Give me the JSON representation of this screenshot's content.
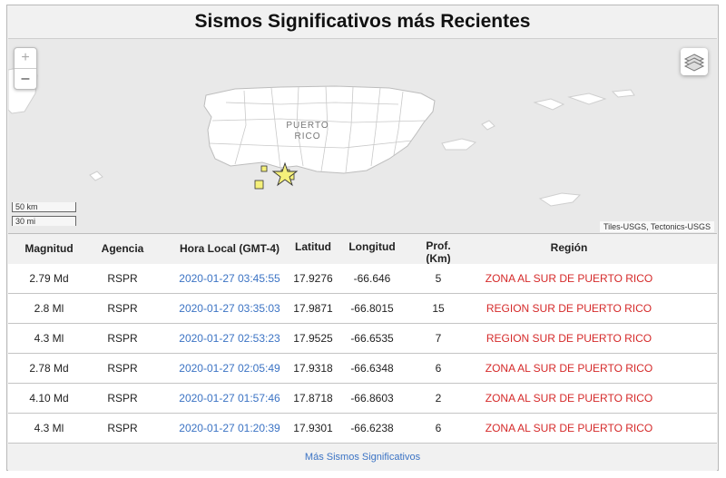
{
  "title": "Sismos Significativos más Recientes",
  "map": {
    "zoom_in": "+",
    "zoom_out": "–",
    "region_label_line1": "PUERTO",
    "region_label_line2": "RICO",
    "scale_km": "50 km",
    "scale_mi": "30 mi",
    "attribution": "Tiles-USGS, Tectonics-USGS"
  },
  "table": {
    "headers": {
      "magnitude": "Magnitud",
      "agency": "Agencia",
      "time": "Hora Local (GMT-4)",
      "latitude": "Latitud",
      "longitude": "Longitud",
      "depth_line1": "Prof.",
      "depth_line2": "(Km)",
      "region": "Región"
    },
    "rows": [
      {
        "magnitude": "2.79 Md",
        "agency": "RSPR",
        "time": "2020-01-27 03:45:55",
        "latitude": "17.9276",
        "longitude": "-66.646",
        "depth": "5",
        "region": "ZONA AL SUR DE PUERTO RICO"
      },
      {
        "magnitude": "2.8 Ml",
        "agency": "RSPR",
        "time": "2020-01-27 03:35:03",
        "latitude": "17.9871",
        "longitude": "-66.8015",
        "depth": "15",
        "region": "REGION SUR DE PUERTO RICO"
      },
      {
        "magnitude": "4.3 Ml",
        "agency": "RSPR",
        "time": "2020-01-27 02:53:23",
        "latitude": "17.9525",
        "longitude": "-66.6535",
        "depth": "7",
        "region": "REGION SUR DE PUERTO RICO"
      },
      {
        "magnitude": "2.78 Md",
        "agency": "RSPR",
        "time": "2020-01-27 02:05:49",
        "latitude": "17.9318",
        "longitude": "-66.6348",
        "depth": "6",
        "region": "ZONA AL SUR DE PUERTO RICO"
      },
      {
        "magnitude": "4.10 Md",
        "agency": "RSPR",
        "time": "2020-01-27 01:57:46",
        "latitude": "17.8718",
        "longitude": "-66.8603",
        "depth": "2",
        "region": "ZONA AL SUR DE PUERTO RICO"
      },
      {
        "magnitude": "4.3 Ml",
        "agency": "RSPR",
        "time": "2020-01-27 01:20:39",
        "latitude": "17.9301",
        "longitude": "-66.6238",
        "depth": "6",
        "region": "ZONA AL SUR DE PUERTO RICO"
      }
    ]
  },
  "footer_link": "Más Sismos Significativos",
  "colors": {
    "link": "#3b73c4",
    "region": "#d52a2a",
    "marker": "#f5f07a"
  }
}
